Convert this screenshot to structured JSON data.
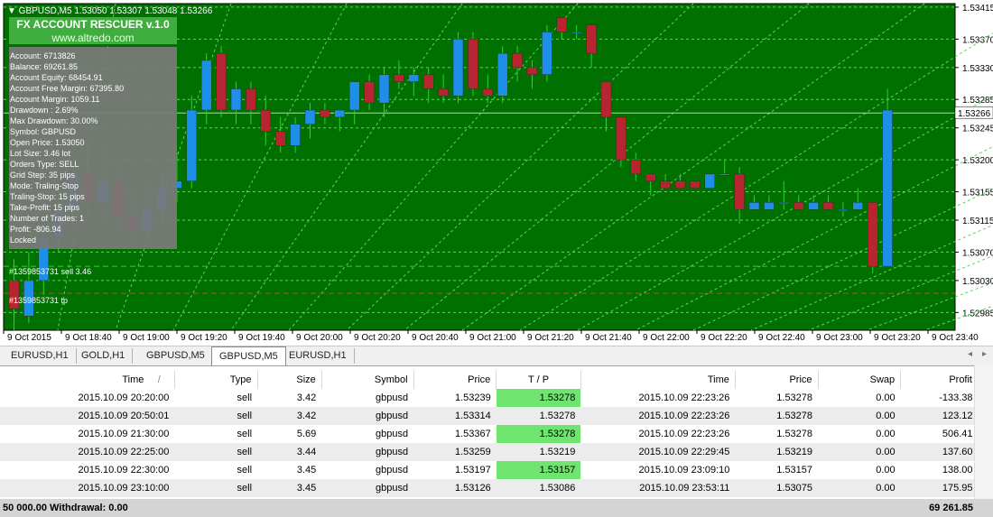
{
  "symbol_header": "GBPUSD,M5  1.53050 1.53307 1.53048 1.53266",
  "panel": {
    "title": "FX ACCOUNT RESCUER v.1.0",
    "website": "www.altredo.com",
    "lines": [
      "Account: 6713826",
      "Balance: 69261.85",
      "Account Equity: 68454.91",
      "Account Free Margin: 67395.80",
      "Account Margin: 1059.11",
      "Drawdown : 2.69%",
      "Max Drawdown: 30.00%",
      "Symbol: GBPUSD",
      "Open Price: 1.53050",
      "Lot Size: 3.46 lot",
      "Orders Type: SELL",
      "Grid Step: 35 pips",
      "Mode: Traling-Stop",
      "Traling-Stop: 15 pips",
      "Take-Profit: 15 pips",
      "Number of Trades: 1",
      "Profit: -806.94",
      "Locked"
    ]
  },
  "order_labels": {
    "sell": "#1359853731 sell 3.46",
    "tp": "#1359853731 tp"
  },
  "current_price_label": "1.53266",
  "colors": {
    "background": "#007000",
    "grid": "#5fd35f",
    "bull": "#1e8fe8",
    "bear": "#b82531",
    "price_line": "#c8c8c8",
    "tp_line": "#d23a3a"
  },
  "chart_data": {
    "type": "candlestick",
    "ylim": [
      1.5296,
      1.5342
    ],
    "price_ticks": [
      1.53415,
      1.5337,
      1.5333,
      1.53285,
      1.53245,
      1.532,
      1.53155,
      1.53115,
      1.5307,
      1.5303,
      1.52985
    ],
    "time_labels": [
      "9 Oct 2015",
      "9 Oct 18:40",
      "9 Oct 19:00",
      "9 Oct 19:20",
      "9 Oct 19:40",
      "9 Oct 20:00",
      "9 Oct 20:20",
      "9 Oct 20:40",
      "9 Oct 21:00",
      "9 Oct 21:20",
      "9 Oct 21:40",
      "9 Oct 22:00",
      "9 Oct 22:20",
      "9 Oct 22:40",
      "9 Oct 23:00",
      "9 Oct 23:20",
      "9 Oct 23:40"
    ],
    "candles": [
      [
        1.5303,
        1.5306,
        1.5296,
        1.5299
      ],
      [
        1.5298,
        1.5307,
        1.5297,
        1.5303
      ],
      [
        1.5303,
        1.5312,
        1.5301,
        1.5309
      ],
      [
        1.5309,
        1.5315,
        1.5307,
        1.5313
      ],
      [
        1.5313,
        1.532,
        1.5311,
        1.5318
      ],
      [
        1.5318,
        1.5322,
        1.5312,
        1.5314
      ],
      [
        1.5314,
        1.5322,
        1.5312,
        1.5317
      ],
      [
        1.5317,
        1.532,
        1.531,
        1.5312
      ],
      [
        1.5312,
        1.5315,
        1.5308,
        1.531
      ],
      [
        1.531,
        1.5317,
        1.5309,
        1.5313
      ],
      [
        1.5313,
        1.5318,
        1.5311,
        1.5316
      ],
      [
        1.5316,
        1.5321,
        1.5314,
        1.5317
      ],
      [
        1.5317,
        1.5329,
        1.5316,
        1.5327
      ],
      [
        1.5327,
        1.5335,
        1.5325,
        1.5334
      ],
      [
        1.5335,
        1.5336,
        1.5326,
        1.5327
      ],
      [
        1.5327,
        1.5331,
        1.5325,
        1.533
      ],
      [
        1.533,
        1.5331,
        1.5325,
        1.5327
      ],
      [
        1.5327,
        1.5329,
        1.5322,
        1.5324
      ],
      [
        1.5324,
        1.5326,
        1.5321,
        1.5322
      ],
      [
        1.5322,
        1.5326,
        1.5321,
        1.5325
      ],
      [
        1.5325,
        1.5328,
        1.5323,
        1.5327
      ],
      [
        1.5327,
        1.5328,
        1.5325,
        1.5326
      ],
      [
        1.5326,
        1.5327,
        1.5324,
        1.5327
      ],
      [
        1.5327,
        1.5331,
        1.5325,
        1.5331
      ],
      [
        1.5331,
        1.5332,
        1.5327,
        1.5328
      ],
      [
        1.5328,
        1.5333,
        1.5326,
        1.5332
      ],
      [
        1.5332,
        1.5334,
        1.533,
        1.5331
      ],
      [
        1.5331,
        1.5333,
        1.5329,
        1.5332
      ],
      [
        1.5332,
        1.5333,
        1.5328,
        1.533
      ],
      [
        1.533,
        1.5332,
        1.5328,
        1.5329
      ],
      [
        1.5329,
        1.5338,
        1.5328,
        1.5337
      ],
      [
        1.5337,
        1.5338,
        1.5329,
        1.533
      ],
      [
        1.533,
        1.5332,
        1.5328,
        1.5329
      ],
      [
        1.5329,
        1.5336,
        1.5328,
        1.5335
      ],
      [
        1.5335,
        1.5336,
        1.5331,
        1.5333
      ],
      [
        1.5333,
        1.5334,
        1.533,
        1.5332
      ],
      [
        1.5332,
        1.5339,
        1.5331,
        1.5338
      ],
      [
        1.534,
        1.534,
        1.5337,
        1.5338
      ],
      [
        1.5338,
        1.5339,
        1.5337,
        1.5338
      ],
      [
        1.5339,
        1.5339,
        1.5333,
        1.5335
      ],
      [
        1.5331,
        1.5331,
        1.5324,
        1.5326
      ],
      [
        1.5326,
        1.5326,
        1.5319,
        1.532
      ],
      [
        1.532,
        1.5321,
        1.5317,
        1.5318
      ],
      [
        1.5318,
        1.5318,
        1.5315,
        1.5317
      ],
      [
        1.5317,
        1.5318,
        1.5316,
        1.5316
      ],
      [
        1.5317,
        1.5318,
        1.5316,
        1.5316
      ],
      [
        1.5317,
        1.5317,
        1.5316,
        1.5316
      ],
      [
        1.5316,
        1.5318,
        1.5316,
        1.5318
      ],
      [
        1.5318,
        1.532,
        1.5318,
        1.5318
      ],
      [
        1.5318,
        1.5319,
        1.5311,
        1.5313
      ],
      [
        1.5313,
        1.5315,
        1.5313,
        1.5314
      ],
      [
        1.5313,
        1.5315,
        1.5313,
        1.5314
      ],
      [
        1.5314,
        1.5317,
        1.5313,
        1.5314
      ],
      [
        1.5314,
        1.5315,
        1.5313,
        1.5313
      ],
      [
        1.5313,
        1.5315,
        1.5313,
        1.5314
      ],
      [
        1.5314,
        1.5315,
        1.5313,
        1.5313
      ],
      [
        1.5313,
        1.5314,
        1.5312,
        1.5313
      ],
      [
        1.5313,
        1.5316,
        1.5313,
        1.5314
      ],
      [
        1.5314,
        1.5314,
        1.5304,
        1.5305
      ],
      [
        1.5305,
        1.533,
        1.5305,
        1.5327
      ]
    ]
  },
  "chart_tabs": [
    {
      "label": "EURUSD,H1",
      "active": false
    },
    {
      "label": "GOLD,H1",
      "active": false
    },
    {
      "label": "GBPUSD,M5",
      "active": false
    },
    {
      "label": "GBPUSD,M5",
      "active": true
    },
    {
      "label": "EURUSD,H1",
      "active": false
    }
  ],
  "tab_nav": {
    "prev": "◂",
    "next": "▸"
  },
  "table": {
    "headers": {
      "time": "Time",
      "sort": "/",
      "type": "Type",
      "size": "Size",
      "symbol": "Symbol",
      "price": "Price",
      "tp": "T / P",
      "time2": "Time",
      "price2": "Price",
      "swap": "Swap",
      "profit": "Profit"
    },
    "rows": [
      {
        "time": "2015.10.09 20:20:00",
        "type": "sell",
        "size": "3.42",
        "symbol": "gbpusd",
        "price": "1.53239",
        "tp": "1.53278",
        "time2": "2015.10.09 22:23:26",
        "price2": "1.53278",
        "swap": "0.00",
        "profit": "-133.38"
      },
      {
        "time": "2015.10.09 20:50:01",
        "type": "sell",
        "size": "3.42",
        "symbol": "gbpusd",
        "price": "1.53314",
        "tp": "1.53278",
        "time2": "2015.10.09 22:23:26",
        "price2": "1.53278",
        "swap": "0.00",
        "profit": "123.12"
      },
      {
        "time": "2015.10.09 21:30:00",
        "type": "sell",
        "size": "5.69",
        "symbol": "gbpusd",
        "price": "1.53367",
        "tp": "1.53278",
        "time2": "2015.10.09 22:23:26",
        "price2": "1.53278",
        "swap": "0.00",
        "profit": "506.41"
      },
      {
        "time": "2015.10.09 22:25:00",
        "type": "sell",
        "size": "3.44",
        "symbol": "gbpusd",
        "price": "1.53259",
        "tp": "1.53219",
        "time2": "2015.10.09 22:29:45",
        "price2": "1.53219",
        "swap": "0.00",
        "profit": "137.60"
      },
      {
        "time": "2015.10.09 22:30:00",
        "type": "sell",
        "size": "3.45",
        "symbol": "gbpusd",
        "price": "1.53197",
        "tp": "1.53157",
        "time2": "2015.10.09 23:09:10",
        "price2": "1.53157",
        "swap": "0.00",
        "profit": "138.00"
      },
      {
        "time": "2015.10.09 23:10:00",
        "type": "sell",
        "size": "3.45",
        "symbol": "gbpusd",
        "price": "1.53126",
        "tp": "1.53086",
        "time2": "2015.10.09 23:53:11",
        "price2": "1.53075",
        "swap": "0.00",
        "profit": "175.95"
      }
    ]
  },
  "footer": {
    "left": "50 000.00  Withdrawal: 0.00",
    "right": "69 261.85"
  }
}
